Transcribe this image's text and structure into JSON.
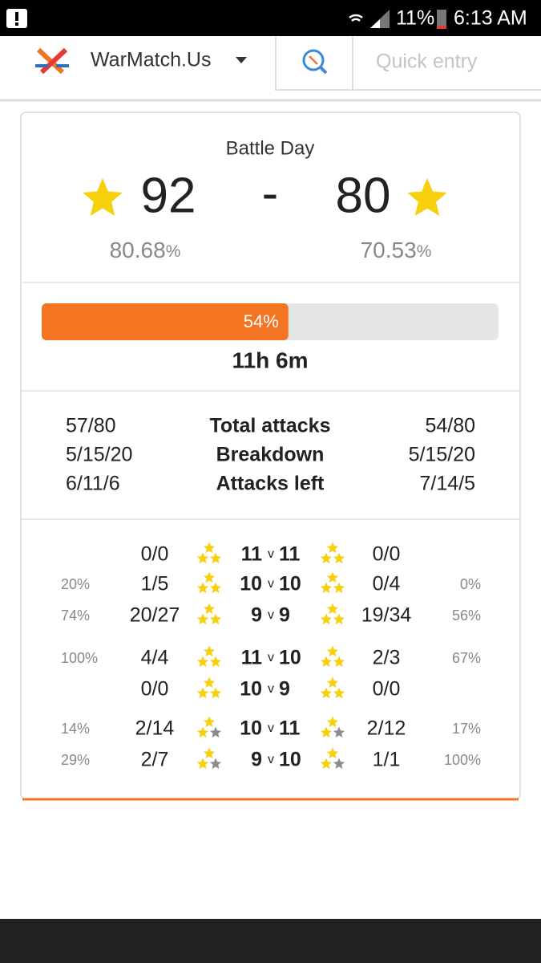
{
  "status_bar": {
    "battery": "11%",
    "time": "6:13 AM"
  },
  "header": {
    "brand": "WarMatch.Us",
    "search_placeholder": "Quick entry"
  },
  "score": {
    "title": "Battle Day",
    "left_stars": "92",
    "separator": "-",
    "right_stars": "80",
    "left_percent": "80.68",
    "right_percent": "70.53",
    "percent_unit": "%",
    "star_color": "#f7cf0a"
  },
  "progress": {
    "percent": 54,
    "label": "54%",
    "remaining": "11h 6m",
    "color": "#f47521"
  },
  "totals": [
    {
      "left": "57/80",
      "label": "Total attacks",
      "right": "54/80"
    },
    {
      "left": "5/15/20",
      "label": "Breakdown",
      "right": "5/15/20"
    },
    {
      "left": "6/11/6",
      "label": "Attacks left",
      "right": "7/14/5"
    }
  ],
  "matchups": {
    "versus": "v",
    "groups": [
      {
        "star_colors": [
          "#f7cf0a",
          "#f7cf0a",
          "#f7cf0a"
        ],
        "rows": [
          {
            "left_pct": null,
            "left": "0/0",
            "left_th": "11",
            "right_th": "11",
            "right": "0/0",
            "right_pct": null
          },
          {
            "left_pct": "20%",
            "left": "1/5",
            "left_th": "10",
            "right_th": "10",
            "right": "0/4",
            "right_pct": "0%"
          },
          {
            "left_pct": "74%",
            "left": "20/27",
            "left_th": "9",
            "right_th": "9",
            "right": "19/34",
            "right_pct": "56%"
          }
        ]
      },
      {
        "star_colors": [
          "#f7cf0a",
          "#f7cf0a",
          "#f7cf0a"
        ],
        "rows": [
          {
            "left_pct": "100%",
            "left": "4/4",
            "left_th": "11",
            "right_th": "10",
            "right": "2/3",
            "right_pct": "67%"
          },
          {
            "left_pct": null,
            "left": "0/0",
            "left_th": "10",
            "right_th": "9",
            "right": "0/0",
            "right_pct": null
          }
        ]
      },
      {
        "star_colors": [
          "#f7cf0a",
          "#f7cf0a",
          "#8c8c8c"
        ],
        "rows": [
          {
            "left_pct": "14%",
            "left": "2/14",
            "left_th": "10",
            "right_th": "11",
            "right": "2/12",
            "right_pct": "17%"
          },
          {
            "left_pct": "29%",
            "left": "2/7",
            "left_th": "9",
            "right_th": "10",
            "right": "1/1",
            "right_pct": "100%"
          }
        ]
      }
    ]
  }
}
